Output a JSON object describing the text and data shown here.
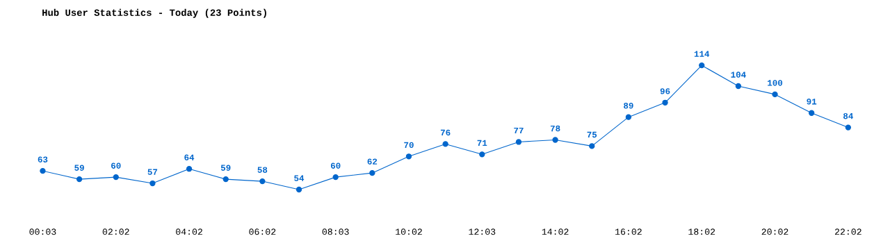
{
  "chart_data": {
    "type": "line",
    "title": "Hub User Statistics - Today (23 Points)",
    "categories": [
      "00:03",
      null,
      "02:02",
      null,
      "04:02",
      null,
      "06:02",
      null,
      "08:03",
      null,
      "10:02",
      null,
      "12:03",
      null,
      "14:02",
      null,
      "16:02",
      null,
      "18:02",
      null,
      "20:02",
      null,
      "22:02"
    ],
    "series": [
      {
        "color": "#0066cc",
        "values": [
          63,
          59,
          60,
          57,
          64,
          59,
          58,
          54,
          60,
          62,
          70,
          76,
          71,
          77,
          78,
          75,
          89,
          96,
          114,
          104,
          100,
          91,
          84
        ]
      }
    ],
    "data_labels": true,
    "marker": "circle",
    "line_style": "solid",
    "grid": false,
    "legend": false
  }
}
